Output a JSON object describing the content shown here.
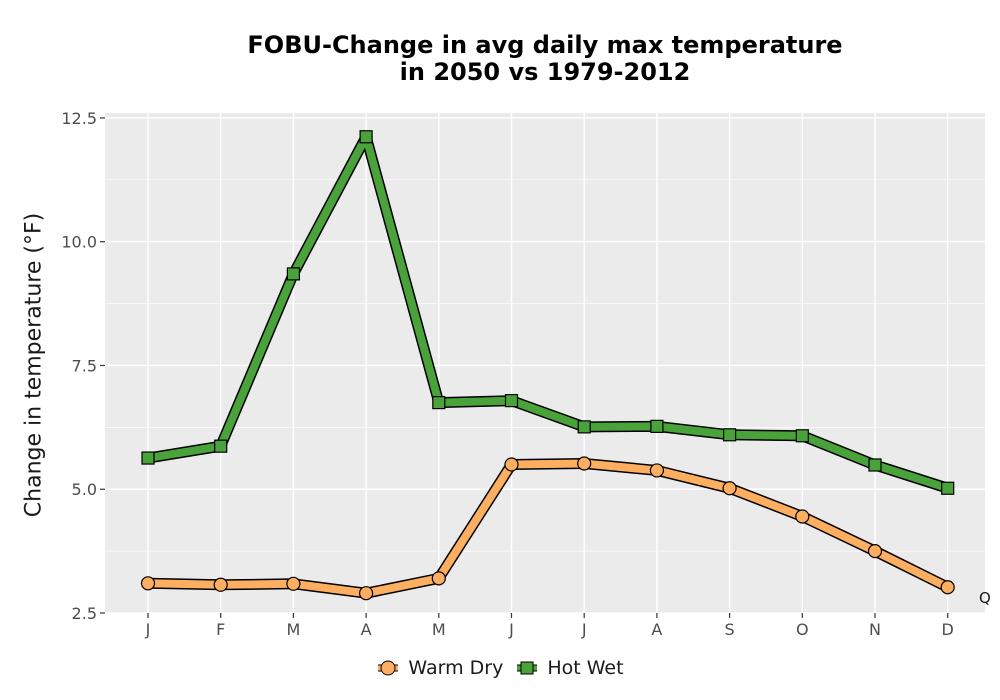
{
  "chart_data": {
    "type": "line",
    "title_lines": [
      "FOBU-Change in avg daily max temperature",
      "in 2050 vs 1979-2012"
    ],
    "ylabel": "Change in temperature (°F)",
    "xlabel": "",
    "categories": [
      "J",
      "F",
      "M",
      "A",
      "M",
      "J",
      "J",
      "A",
      "S",
      "O",
      "N",
      "D"
    ],
    "ylim": [
      2.5,
      12.5
    ],
    "yticks": [
      "2.5",
      "5.0",
      "7.5",
      "10.0",
      "12.5"
    ],
    "ytick_values": [
      2.5,
      5.0,
      7.5,
      10.0,
      12.5
    ],
    "grid": true,
    "legend_position": "bottom",
    "series": [
      {
        "name": "Warm Dry",
        "marker": "circle",
        "color": "#fdae61",
        "values": [
          3.1,
          3.07,
          3.09,
          2.9,
          3.2,
          5.5,
          5.52,
          5.38,
          5.02,
          4.45,
          3.75,
          3.02
        ]
      },
      {
        "name": "Hot Wet",
        "marker": "square",
        "color": "#4aa23b",
        "values": [
          5.63,
          5.87,
          9.35,
          12.12,
          6.75,
          6.79,
          6.26,
          6.27,
          6.1,
          6.08,
          5.49,
          5.02
        ]
      }
    ],
    "annotation": "Q",
    "colors": {
      "panel": "#ebebeb",
      "grid": "#ffffff",
      "outline": "#000000"
    }
  }
}
